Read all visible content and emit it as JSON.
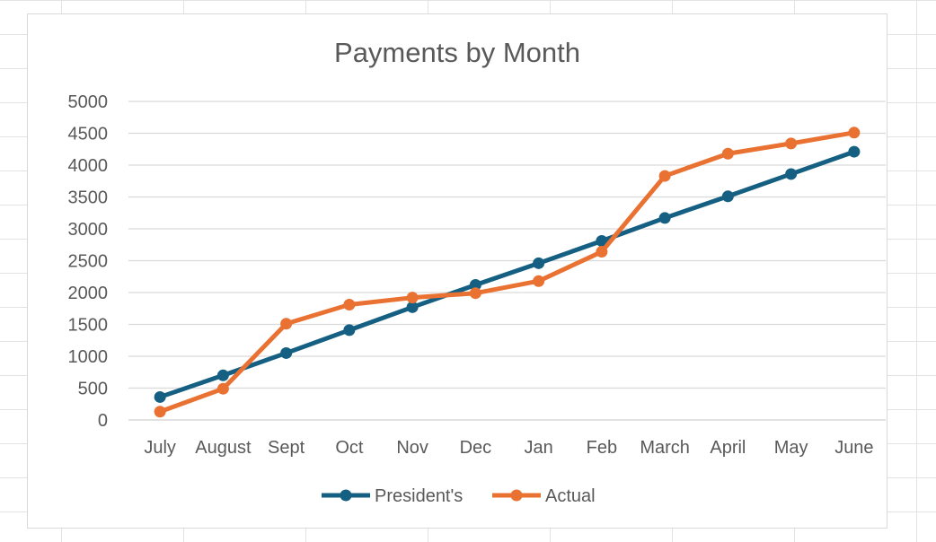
{
  "chart_data": {
    "type": "line",
    "title": "Payments by Month",
    "xlabel": "",
    "ylabel": "",
    "categories": [
      "July",
      "August",
      "Sept",
      "Oct",
      "Nov",
      "Dec",
      "Jan",
      "Feb",
      "March",
      "April",
      "May",
      "June"
    ],
    "ylim": [
      0,
      5000
    ],
    "yticks": [
      0,
      500,
      1000,
      1500,
      2000,
      2500,
      3000,
      3500,
      4000,
      4500,
      5000
    ],
    "grid": true,
    "legend_position": "bottom",
    "series": [
      {
        "name": "President's",
        "color": "#156082",
        "values": [
          360,
          700,
          1050,
          1410,
          1770,
          2120,
          2460,
          2810,
          3170,
          3510,
          3860,
          4210
        ]
      },
      {
        "name": "Actual",
        "color": "#E97132",
        "values": [
          130,
          490,
          1510,
          1810,
          1920,
          1990,
          2180,
          2640,
          3830,
          4180,
          4340,
          4510
        ]
      }
    ]
  }
}
